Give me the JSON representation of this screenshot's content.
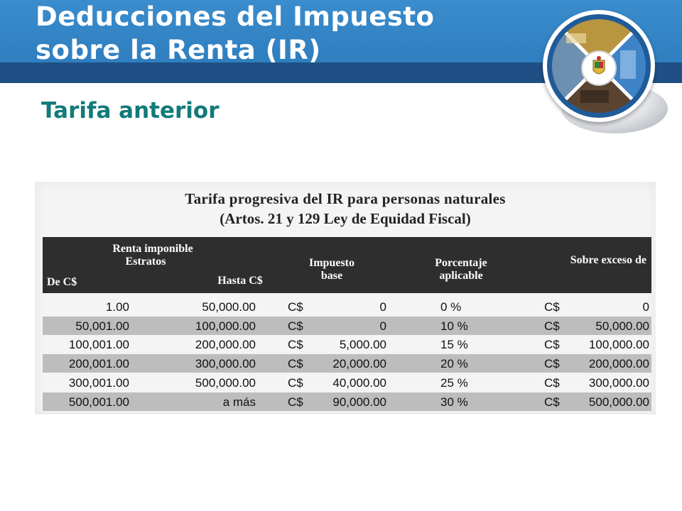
{
  "header": {
    "title_line1": "Deducciones del Impuesto",
    "title_line2": "sobre la Renta (IR)",
    "colors": {
      "band_light": "#3a8ccc",
      "band_dark": "#1f4f85",
      "subtitle": "#127a7a"
    }
  },
  "subtitle": "Tarifa anterior",
  "logo": {
    "icon": "institution-seal-icon"
  },
  "scan": {
    "title": "Tarifa progresiva del IR para personas naturales",
    "subtitle": "(Artos. 21 y 129 Ley de Equidad Fiscal)",
    "headers": {
      "group": "Renta imponible",
      "group_sub": "Estratos",
      "from": "De C$",
      "to": "Hasta C$",
      "base_line1": "Impuesto",
      "base_line2": "base",
      "pct_line1": "Porcentaje",
      "pct_line2": "aplicable",
      "excess": "Sobre exceso de"
    },
    "rows": [
      {
        "from": "1.00",
        "to": "50,000.00",
        "base_cur": "C$",
        "base": "0",
        "pct": "0 %",
        "exc_cur": "C$",
        "excess": "0"
      },
      {
        "from": "50,001.00",
        "to": "100,000.00",
        "base_cur": "C$",
        "base": "0",
        "pct": "10 %",
        "exc_cur": "C$",
        "excess": "50,000.00"
      },
      {
        "from": "100,001.00",
        "to": "200,000.00",
        "base_cur": "C$",
        "base": "5,000.00",
        "pct": "15 %",
        "exc_cur": "C$",
        "excess": "100,000.00"
      },
      {
        "from": "200,001.00",
        "to": "300,000.00",
        "base_cur": "C$",
        "base": "20,000.00",
        "pct": "20 %",
        "exc_cur": "C$",
        "excess": "200,000.00"
      },
      {
        "from": "300,001.00",
        "to": "500,000.00",
        "base_cur": "C$",
        "base": "40,000.00",
        "pct": "25 %",
        "exc_cur": "C$",
        "excess": "300,000.00"
      },
      {
        "from": "500,001.00",
        "to": "a más",
        "base_cur": "C$",
        "base": "90,000.00",
        "pct": "30 %",
        "exc_cur": "C$",
        "excess": "500,000.00"
      }
    ]
  }
}
